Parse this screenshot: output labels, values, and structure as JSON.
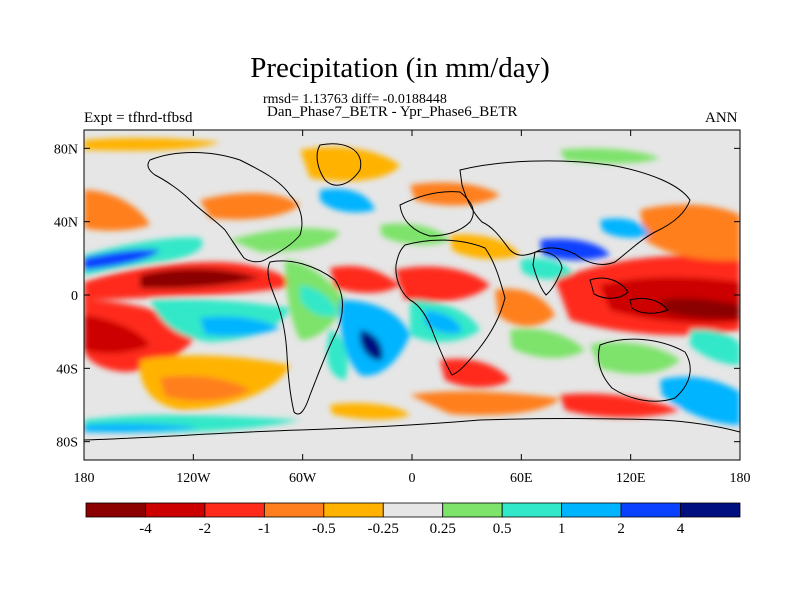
{
  "title": "Precipitation (in mm/day)",
  "stats_line": "rmsd= 1.13763 diff= -0.0188448",
  "subtitle": "Dan_Phase7_BETR - Ypr_Phase6_BETR",
  "left_label": "Expt = tfhrd-tfbsd",
  "right_label": "ANN",
  "lon_ticks": [
    "180",
    "120W",
    "60W",
    "0",
    "60E",
    "120E",
    "180"
  ],
  "lat_ticks": [
    "80N",
    "40N",
    "0",
    "40S",
    "80S"
  ],
  "colorbar": {
    "labels": [
      "-4",
      "-2",
      "-1",
      "-0.5",
      "-0.25",
      "0.25",
      "0.5",
      "1",
      "2",
      "4"
    ],
    "colors": [
      "#8b0000",
      "#cc0000",
      "#ff2a1a",
      "#ff7f1e",
      "#ffb300",
      "#e6e6e6",
      "#7de36b",
      "#31e8c8",
      "#00b4ff",
      "#0a40ff",
      "#000f80"
    ]
  },
  "colors": {
    "ocean_neutral": "#e6e6e6",
    "coast": "#000000"
  }
}
